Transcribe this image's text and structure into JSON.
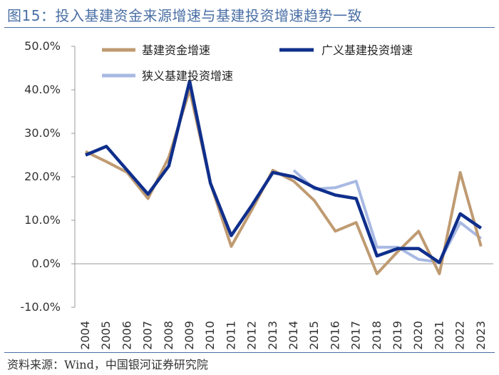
{
  "title": "图15：投入基建资金来源增速与基建投资增速趋势一致",
  "source": "资料来源：Wind，中国银河证券研究院",
  "chart_data": {
    "type": "line",
    "title": "图15：投入基建资金来源增速与基建投资增速趋势一致",
    "xlabel": "",
    "ylabel": "",
    "ylim": [
      -10,
      50
    ],
    "yticks": [
      -10,
      0,
      10,
      20,
      30,
      40,
      50
    ],
    "ytick_labels": [
      "-10.0%",
      "0.0%",
      "10.0%",
      "20.0%",
      "30.0%",
      "40.0%",
      "50.0%"
    ],
    "categories": [
      "2004",
      "2005",
      "2006",
      "2007",
      "2008",
      "2009",
      "2010",
      "2011",
      "2012",
      "2013",
      "2014",
      "2015",
      "2016",
      "2017",
      "2018",
      "2019",
      "2020",
      "2021",
      "2022",
      "2023"
    ],
    "legend_position": "top",
    "series": [
      {
        "name": "基建资金增速",
        "color": "#bf9b72",
        "values": [
          25.8,
          23.5,
          21.0,
          15.0,
          24.5,
          40.0,
          18.5,
          4.0,
          12.5,
          21.5,
          19.0,
          14.5,
          7.5,
          9.5,
          -2.3,
          2.8,
          7.5,
          -2.3,
          21.0,
          4.0
        ]
      },
      {
        "name": "广义基建投资增速",
        "color": "#0f2f8c",
        "values": [
          25.0,
          27.0,
          21.5,
          16.0,
          22.5,
          42.0,
          18.5,
          6.5,
          13.5,
          21.0,
          20.0,
          17.5,
          15.8,
          15.0,
          1.8,
          3.5,
          3.5,
          0.3,
          11.5,
          8.2
        ]
      },
      {
        "name": "狭义基建投资增速",
        "color": "#a8b9e3",
        "values": [
          null,
          null,
          null,
          null,
          null,
          null,
          null,
          null,
          null,
          null,
          21.5,
          17.2,
          17.5,
          19.0,
          3.8,
          3.8,
          1.0,
          0.4,
          9.5,
          5.8
        ]
      }
    ]
  }
}
